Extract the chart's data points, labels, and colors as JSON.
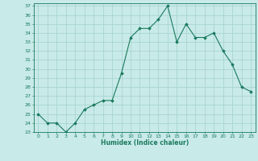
{
  "x": [
    0,
    1,
    2,
    3,
    4,
    5,
    6,
    7,
    8,
    9,
    10,
    11,
    12,
    13,
    14,
    15,
    16,
    17,
    18,
    19,
    20,
    21,
    22,
    23
  ],
  "y": [
    25.0,
    24.0,
    24.0,
    23.0,
    24.0,
    25.5,
    26.0,
    26.5,
    26.5,
    29.5,
    33.5,
    34.5,
    34.5,
    35.5,
    37.0,
    33.0,
    35.0,
    33.5,
    33.5,
    34.0,
    32.0,
    30.5,
    28.0,
    27.5
  ],
  "line_color": "#1a7a5e",
  "marker": "D",
  "marker_size": 1.8,
  "xlabel": "Humidex (Indice chaleur)",
  "ylim": [
    23,
    37
  ],
  "xlim": [
    -0.5,
    23.5
  ],
  "bg_color": "#c8eae8",
  "grid_color": "#a8d5d2",
  "yticks": [
    23,
    24,
    25,
    26,
    27,
    28,
    29,
    30,
    31,
    32,
    33,
    34,
    35,
    36,
    37
  ],
  "xticks": [
    0,
    1,
    2,
    3,
    4,
    5,
    6,
    7,
    8,
    9,
    10,
    11,
    12,
    13,
    14,
    15,
    16,
    17,
    18,
    19,
    20,
    21,
    22,
    23
  ]
}
